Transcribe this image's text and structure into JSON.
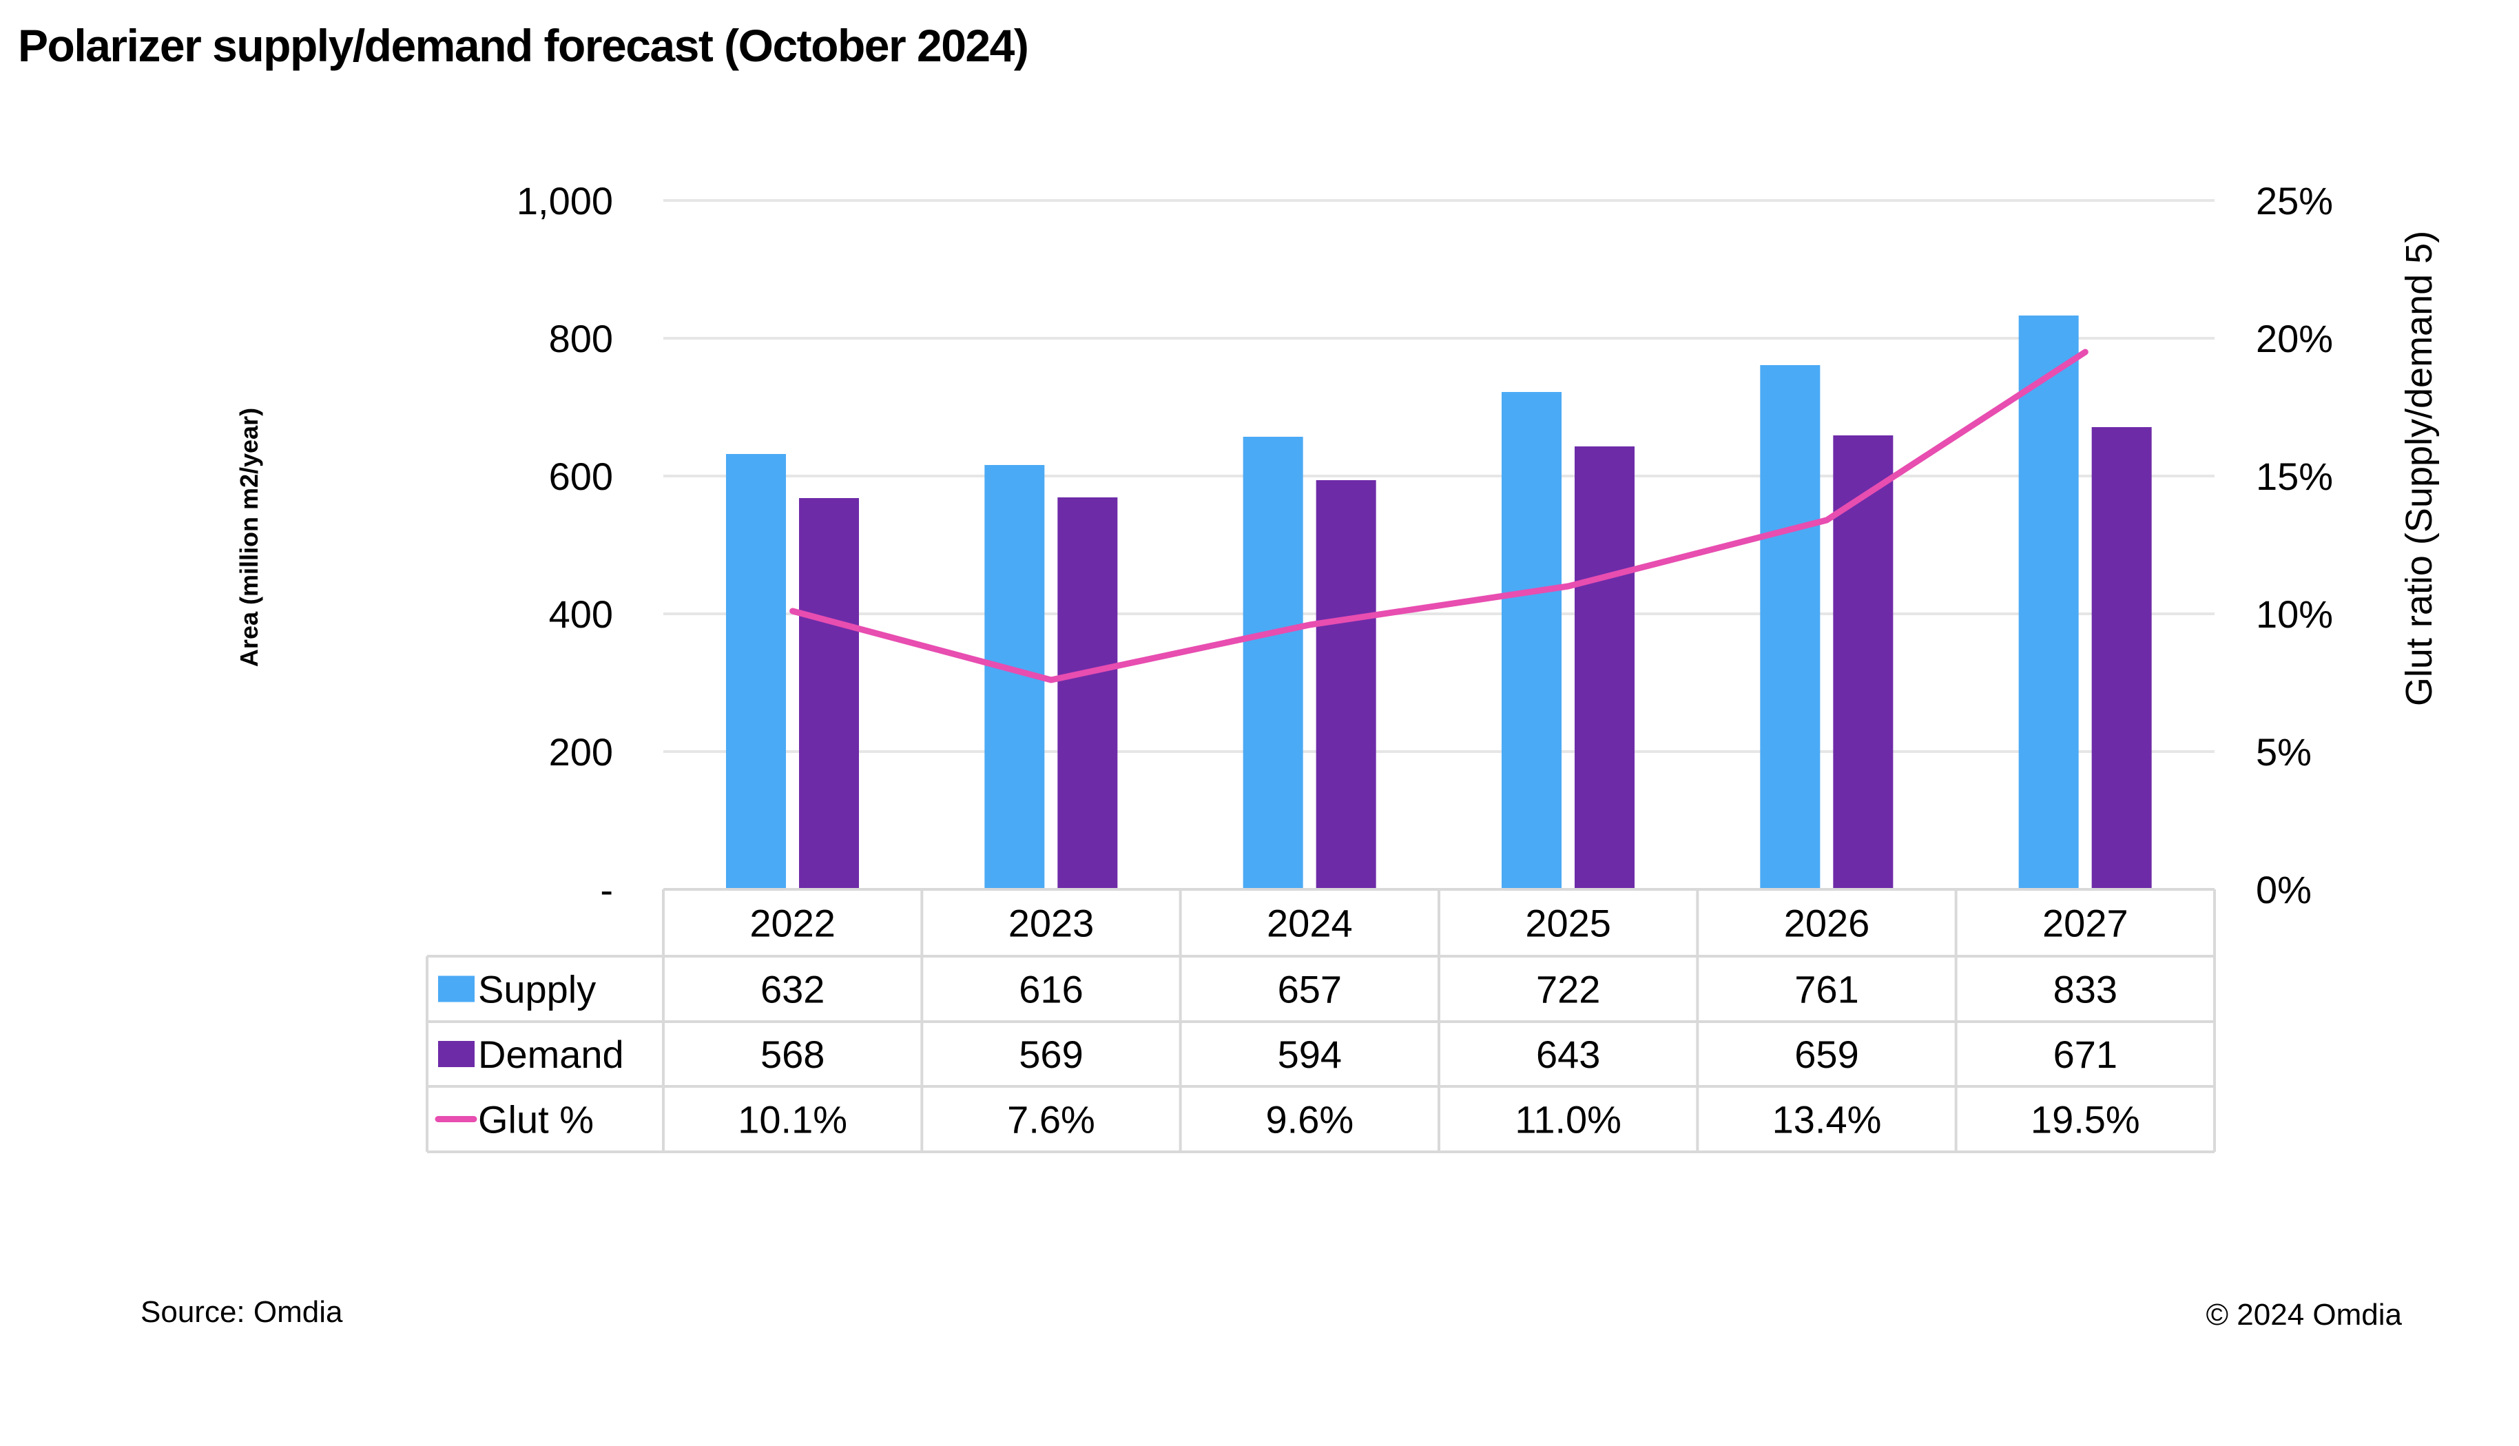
{
  "title": "Polarizer supply/demand forecast (October 2024)",
  "footer": {
    "source": "Source: Omdia",
    "copyright": "© 2024 Omdia"
  },
  "colors": {
    "supply": "#4BAAF5",
    "demand": "#6E2BA8",
    "glut": "#E84DB0",
    "grid": "#E6E6E6",
    "table_border": "#D9D9D9"
  },
  "chart_data": {
    "type": "bar",
    "title": "Polarizer supply/demand forecast (October 2024)",
    "categories": [
      "2022",
      "2023",
      "2024",
      "2025",
      "2026",
      "2027"
    ],
    "series": [
      {
        "name": "Supply",
        "type": "bar",
        "axis": "left",
        "values": [
          632,
          616,
          657,
          722,
          761,
          833
        ],
        "labels": [
          "632",
          "616",
          "657",
          "722",
          "761",
          "833"
        ]
      },
      {
        "name": "Demand",
        "type": "bar",
        "axis": "left",
        "values": [
          568,
          569,
          594,
          643,
          659,
          671
        ],
        "labels": [
          "568",
          "569",
          "594",
          "643",
          "659",
          "671"
        ]
      },
      {
        "name": "Glut %",
        "type": "line",
        "axis": "right",
        "values": [
          10.1,
          7.6,
          9.6,
          11.0,
          13.4,
          19.5
        ],
        "labels": [
          "10.1%",
          "7.6%",
          "9.6%",
          "11.0%",
          "13.4%",
          "19.5%"
        ]
      }
    ],
    "ylabel": "Area (million m2/year)",
    "ylim": [
      0,
      1000
    ],
    "yticks": [
      0,
      200,
      400,
      600,
      800,
      1000
    ],
    "ytick_labels": [
      "-",
      "200",
      "400",
      "600",
      "800",
      "1,000"
    ],
    "y2label": "Glut ratio (Supply/demand 5)",
    "y2lim": [
      0,
      25
    ],
    "y2ticks": [
      0,
      5,
      10,
      15,
      20,
      25
    ],
    "y2tick_labels": [
      "0%",
      "5%",
      "10%",
      "15%",
      "20%",
      "25%"
    ],
    "grid": true,
    "legend": "data-table-below"
  }
}
